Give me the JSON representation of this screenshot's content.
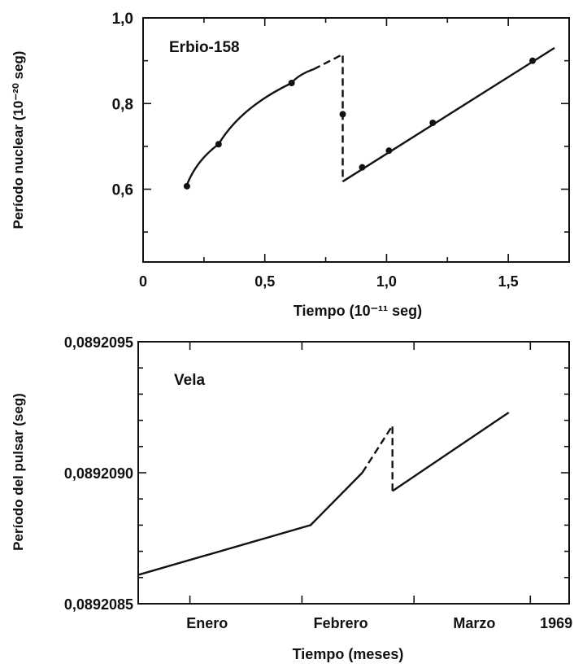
{
  "chart_data": [
    {
      "type": "line",
      "title": "",
      "annotation": "Erbio-158",
      "xlabel": "Tiempo (10⁻¹¹ seg)",
      "ylabel": "Período nuclear (10⁻²⁰ seg)",
      "xlim": [
        0,
        1.75
      ],
      "ylim": [
        0.43,
        1.0
      ],
      "x_ticks": [
        0,
        0.5,
        1.0,
        1.5
      ],
      "x_tick_labels": [
        "0",
        "0,5",
        "1,0",
        "1,5"
      ],
      "y_ticks": [
        0.6,
        0.8,
        1.0
      ],
      "y_tick_labels": [
        "0,6",
        "0,8",
        "1,0"
      ],
      "grid": false,
      "series": [
        {
          "style": "solid-curve",
          "x": [
            0.18,
            0.31,
            0.61,
            0.7
          ],
          "y": [
            0.61,
            0.705,
            0.848,
            0.88
          ]
        },
        {
          "style": "dashed",
          "x": [
            0.7,
            0.82,
            0.82,
            0.82
          ],
          "y": [
            0.88,
            0.915,
            0.775,
            0.618
          ]
        },
        {
          "style": "solid",
          "x": [
            0.82,
            1.69
          ],
          "y": [
            0.618,
            0.93
          ]
        }
      ],
      "points": [
        {
          "x": 0.18,
          "y": 0.607
        },
        {
          "x": 0.31,
          "y": 0.705
        },
        {
          "x": 0.61,
          "y": 0.848
        },
        {
          "x": 0.82,
          "y": 0.775
        },
        {
          "x": 0.9,
          "y": 0.651
        },
        {
          "x": 1.01,
          "y": 0.69
        },
        {
          "x": 1.19,
          "y": 0.755
        },
        {
          "x": 1.6,
          "y": 0.9
        }
      ]
    },
    {
      "type": "line",
      "title": "",
      "annotation": "Vela",
      "xlabel": "Tiempo (meses)",
      "ylabel": "Período del pulsar (seg)",
      "xlim": [
        0,
        1
      ],
      "ylim": [
        0.0892085,
        0.0892095
      ],
      "y_ticks": [
        0.0892085,
        0.089209,
        0.0892095
      ],
      "y_tick_labels": [
        "0,0892085",
        "0,0892090",
        "0,0892095"
      ],
      "x_tick_labels": [
        "Enero",
        "Febrero",
        "Marzo",
        "1969"
      ],
      "grid": false,
      "series": [
        {
          "style": "solid",
          "x": [
            0,
            0.4,
            0.52
          ],
          "y": [
            0.08920861,
            0.0892088,
            0.089209
          ]
        },
        {
          "style": "dashed",
          "x": [
            0.52,
            0.59,
            0.59,
            0.59
          ],
          "y": [
            0.089209,
            0.08920918,
            0.089209,
            0.08920893
          ]
        },
        {
          "style": "solid",
          "x": [
            0.59,
            0.86
          ],
          "y": [
            0.08920893,
            0.08920923
          ]
        }
      ]
    }
  ]
}
